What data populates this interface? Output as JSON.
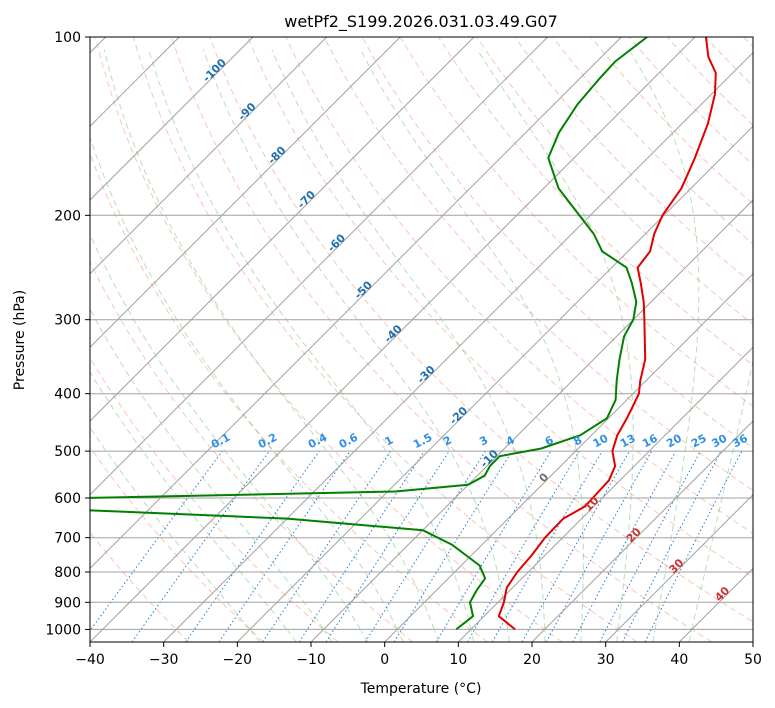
{
  "chart_data": {
    "type": "line",
    "title": "wetPf2_S199.2026.031.03.49.G07",
    "xlabel": "Temperature (°C)",
    "ylabel": "Pressure (hPa)",
    "xlim": [
      -40,
      50
    ],
    "ylim": [
      1050,
      100
    ],
    "y_scale": "log",
    "skew": true,
    "grid": true,
    "x_ticks": [
      -40,
      -30,
      -20,
      -10,
      0,
      10,
      20,
      30,
      40,
      50
    ],
    "y_ticks": [
      100,
      200,
      300,
      400,
      500,
      600,
      700,
      800,
      900,
      1000
    ],
    "series": [
      {
        "color": "#e00000",
        "points": [
          {
            "p": 1000,
            "t": 16.0
          },
          {
            "p": 950,
            "t": 12.0
          },
          {
            "p": 900,
            "t": 10.8
          },
          {
            "p": 850,
            "t": 9.2
          },
          {
            "p": 800,
            "t": 8.5
          },
          {
            "p": 750,
            "t": 8.2
          },
          {
            "p": 700,
            "t": 7.6
          },
          {
            "p": 650,
            "t": 7.5
          },
          {
            "p": 620,
            "t": 8.8
          },
          {
            "p": 600,
            "t": 8.7
          },
          {
            "p": 560,
            "t": 8.5
          },
          {
            "p": 530,
            "t": 7.4
          },
          {
            "p": 500,
            "t": 5.0
          },
          {
            "p": 470,
            "t": 3.5
          },
          {
            "p": 440,
            "t": 2.5
          },
          {
            "p": 420,
            "t": 1.7
          },
          {
            "p": 400,
            "t": 0.8
          },
          {
            "p": 380,
            "t": -0.8
          },
          {
            "p": 350,
            "t": -3.0
          },
          {
            "p": 320,
            "t": -6.2
          },
          {
            "p": 300,
            "t": -8.5
          },
          {
            "p": 280,
            "t": -11.0
          },
          {
            "p": 260,
            "t": -14.0
          },
          {
            "p": 245,
            "t": -16.5
          },
          {
            "p": 230,
            "t": -17.0
          },
          {
            "p": 215,
            "t": -18.8
          },
          {
            "p": 200,
            "t": -20.2
          },
          {
            "p": 180,
            "t": -21.3
          },
          {
            "p": 160,
            "t": -23.6
          },
          {
            "p": 140,
            "t": -26.5
          },
          {
            "p": 125,
            "t": -29.5
          },
          {
            "p": 115,
            "t": -32.3
          },
          {
            "p": 108,
            "t": -35.5
          },
          {
            "p": 100,
            "t": -38.5
          }
        ]
      },
      {
        "color": "#008000",
        "points": [
          {
            "p": 1000,
            "t": 8.0
          },
          {
            "p": 950,
            "t": 8.5
          },
          {
            "p": 900,
            "t": 6.2
          },
          {
            "p": 860,
            "t": 5.5
          },
          {
            "p": 820,
            "t": 5.0
          },
          {
            "p": 780,
            "t": 2.5
          },
          {
            "p": 720,
            "t": -4.0
          },
          {
            "p": 680,
            "t": -10.0
          },
          {
            "p": 650,
            "t": -30.0
          },
          {
            "p": 628,
            "t": -60.0
          },
          {
            "p": 600,
            "t": -60.0
          },
          {
            "p": 585,
            "t": -19.0
          },
          {
            "p": 570,
            "t": -10.0
          },
          {
            "p": 550,
            "t": -9.0
          },
          {
            "p": 530,
            "t": -9.6
          },
          {
            "p": 510,
            "t": -9.6
          },
          {
            "p": 495,
            "t": -5.0
          },
          {
            "p": 470,
            "t": -1.5
          },
          {
            "p": 440,
            "t": -0.2
          },
          {
            "p": 410,
            "t": -1.5
          },
          {
            "p": 380,
            "t": -4.0
          },
          {
            "p": 350,
            "t": -6.5
          },
          {
            "p": 320,
            "t": -9.0
          },
          {
            "p": 300,
            "t": -10.0
          },
          {
            "p": 280,
            "t": -12.0
          },
          {
            "p": 260,
            "t": -15.2
          },
          {
            "p": 245,
            "t": -18.0
          },
          {
            "p": 230,
            "t": -23.5
          },
          {
            "p": 215,
            "t": -27.0
          },
          {
            "p": 200,
            "t": -31.5
          },
          {
            "p": 180,
            "t": -38.0
          },
          {
            "p": 160,
            "t": -43.5
          },
          {
            "p": 145,
            "t": -45.5
          },
          {
            "p": 130,
            "t": -46.8
          },
          {
            "p": 118,
            "t": -47.3
          },
          {
            "p": 110,
            "t": -47.5
          },
          {
            "p": 100,
            "t": -46.5
          }
        ]
      }
    ],
    "dry_adiabat_labels": [
      "-100",
      "-90",
      "-80",
      "-70",
      "-60",
      "-50",
      "-40",
      "-30",
      "-20",
      "-10",
      "0",
      "10",
      "20",
      "30",
      "40"
    ],
    "mixing_ratio_labels": [
      "0.1",
      "0.2",
      "0.4",
      "0.6",
      "1",
      "1.5",
      "2",
      "3",
      "4",
      "6",
      "8",
      "10",
      "13",
      "16",
      "20",
      "25",
      "30",
      "36"
    ]
  }
}
